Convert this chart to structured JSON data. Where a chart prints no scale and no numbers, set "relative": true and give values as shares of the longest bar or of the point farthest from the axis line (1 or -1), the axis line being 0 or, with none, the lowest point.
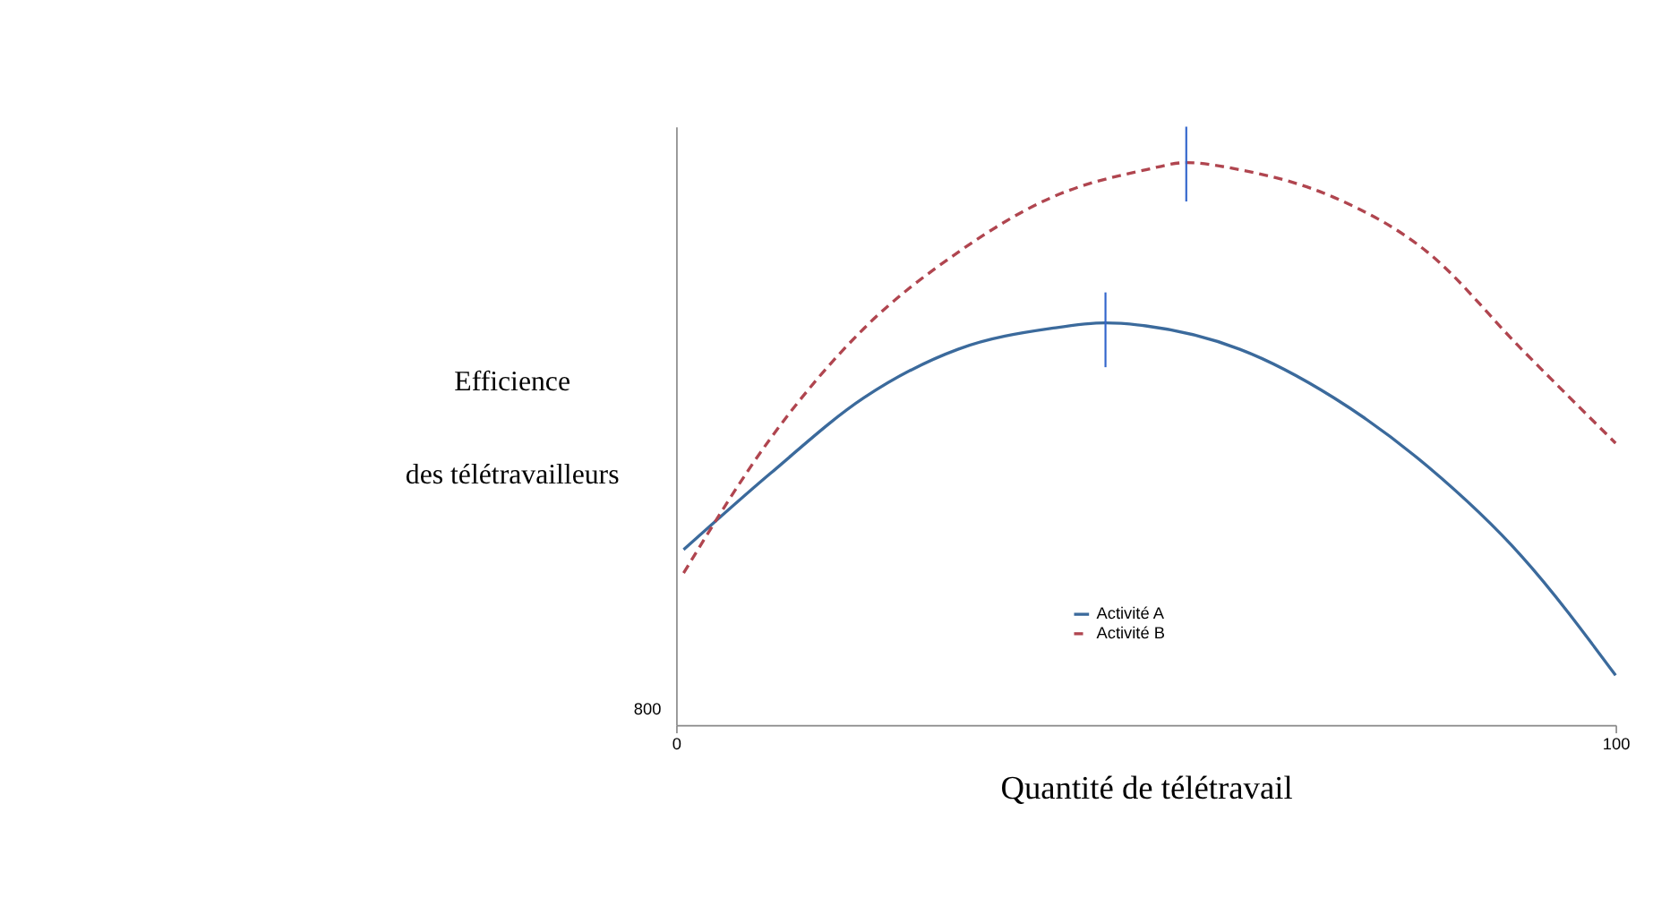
{
  "chart_data": {
    "type": "line",
    "relative": true,
    "xlabel": "Quantité de télétravail",
    "ylabel": "Efficience\ndes télétravailleurs",
    "xlim": [
      0,
      100
    ],
    "xticks": [
      0,
      100
    ],
    "annotations": [
      "800"
    ],
    "grid": false,
    "legend": "bottom",
    "marker": "none",
    "series": [
      {
        "name": "Activité A",
        "color": "#3b6a9c",
        "line_style": "solid",
        "x": [
          0.8,
          10,
          20,
          30,
          40,
          45.7,
          50,
          60,
          70,
          80,
          90,
          100
        ],
        "values": [
          0.293,
          0.42,
          0.547,
          0.628,
          0.663,
          0.672,
          0.667,
          0.628,
          0.547,
          0.432,
          0.282,
          0.083
        ]
      },
      {
        "name": "Activité B",
        "color": "#b0454f",
        "line_style": "dashed",
        "x": [
          0.8,
          10,
          20,
          30,
          40,
          50,
          54.3,
          60,
          70,
          80,
          90,
          100
        ],
        "values": [
          0.254,
          0.478,
          0.663,
          0.79,
          0.882,
          0.928,
          0.94,
          0.928,
          0.882,
          0.79,
          0.628,
          0.471
        ]
      },
      {
        "color": "#3366cc",
        "line_style": "solid",
        "x": [
          45.7,
          45.7
        ],
        "values": [
          0.598,
          0.723
        ]
      },
      {
        "color": "#3366cc",
        "line_style": "solid",
        "x": [
          54.3,
          54.3
        ],
        "values": [
          0.875,
          1
        ]
      }
    ]
  }
}
